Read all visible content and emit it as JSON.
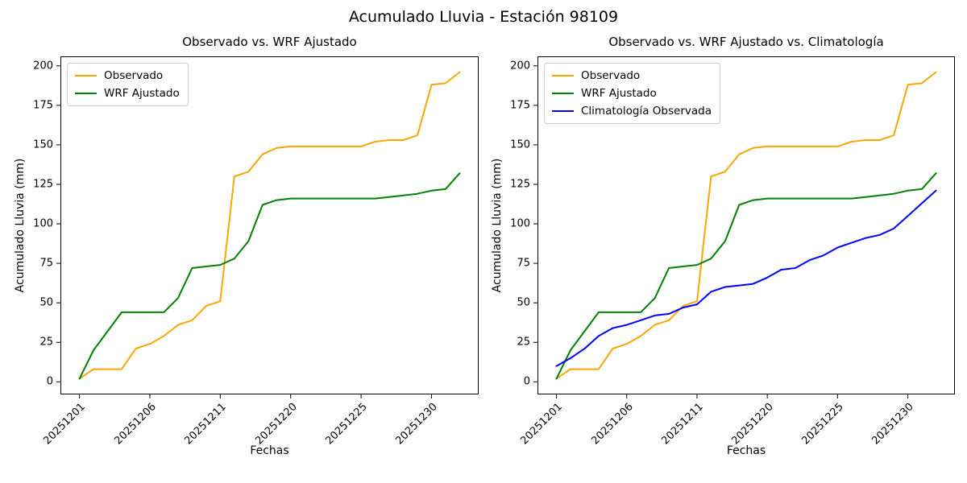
{
  "figure": {
    "title": "Acumulado Lluvia - Estación 98109",
    "background_color": "#ffffff",
    "text_color": "#000000",
    "spine_color": "#000000"
  },
  "chart_data": [
    {
      "type": "line",
      "title": "Observado vs. WRF Ajustado",
      "xlabel": "Fechas",
      "ylabel": "Acumulado Lluvia (mm)",
      "n_points": 28,
      "xlim": [
        -1.35,
        28.35
      ],
      "ylim": [
        -8,
        206
      ],
      "grid": false,
      "legend_position": "upper-left",
      "yticks": [
        0,
        25,
        50,
        75,
        100,
        125,
        150,
        175,
        200
      ],
      "x_ticks": [
        {
          "index": 0,
          "label": "20251201"
        },
        {
          "index": 5,
          "label": "20251206"
        },
        {
          "index": 10,
          "label": "20251211"
        },
        {
          "index": 15,
          "label": "20251220"
        },
        {
          "index": 20,
          "label": "20251225"
        },
        {
          "index": 25,
          "label": "20251230"
        }
      ],
      "series": [
        {
          "name": "Observado",
          "color": "#ffa500",
          "values": [
            2,
            8,
            8,
            8,
            21,
            24,
            29,
            36,
            39,
            48,
            51,
            130,
            133,
            144,
            148,
            149,
            149,
            149,
            149,
            149,
            149,
            152,
            153,
            153,
            156,
            188,
            189,
            196
          ]
        },
        {
          "name": "WRF Ajustado",
          "color": "#008000",
          "values": [
            2,
            20,
            32,
            44,
            44,
            44,
            44,
            53,
            72,
            73,
            74,
            78,
            89,
            112,
            115,
            116,
            116,
            116,
            116,
            116,
            116,
            116,
            117,
            118,
            119,
            121,
            122,
            132
          ]
        }
      ]
    },
    {
      "type": "line",
      "title": "Observado vs. WRF Ajustado vs. Climatología",
      "xlabel": "Fechas",
      "ylabel": "Acumulado Lluvia (mm)",
      "n_points": 28,
      "xlim": [
        -1.35,
        28.35
      ],
      "ylim": [
        -8,
        206
      ],
      "grid": false,
      "legend_position": "upper-left",
      "yticks": [
        0,
        25,
        50,
        75,
        100,
        125,
        150,
        175,
        200
      ],
      "x_ticks": [
        {
          "index": 0,
          "label": "20251201"
        },
        {
          "index": 5,
          "label": "20251206"
        },
        {
          "index": 10,
          "label": "20251211"
        },
        {
          "index": 15,
          "label": "20251220"
        },
        {
          "index": 20,
          "label": "20251225"
        },
        {
          "index": 25,
          "label": "20251230"
        }
      ],
      "series": [
        {
          "name": "Observado",
          "color": "#ffa500",
          "values": [
            2,
            8,
            8,
            8,
            21,
            24,
            29,
            36,
            39,
            48,
            51,
            130,
            133,
            144,
            148,
            149,
            149,
            149,
            149,
            149,
            149,
            152,
            153,
            153,
            156,
            188,
            189,
            196
          ]
        },
        {
          "name": "WRF Ajustado",
          "color": "#008000",
          "values": [
            2,
            20,
            32,
            44,
            44,
            44,
            44,
            53,
            72,
            73,
            74,
            78,
            89,
            112,
            115,
            116,
            116,
            116,
            116,
            116,
            116,
            116,
            117,
            118,
            119,
            121,
            122,
            132
          ]
        },
        {
          "name": "Climatología Observada",
          "color": "#0000ff",
          "values": [
            10,
            15,
            21,
            29,
            34,
            36,
            39,
            42,
            43,
            47,
            49,
            57,
            60,
            61,
            62,
            66,
            71,
            72,
            77,
            80,
            85,
            88,
            91,
            93,
            97,
            105,
            113,
            121
          ]
        }
      ]
    }
  ]
}
